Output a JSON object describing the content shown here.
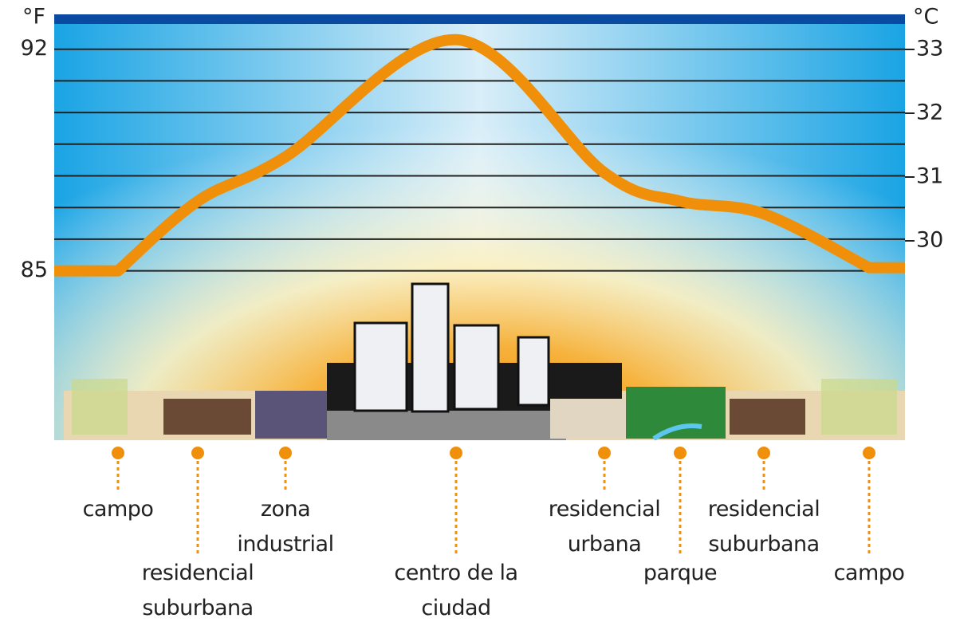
{
  "chart_data": {
    "type": "line",
    "y_label": "°F",
    "y2_label": "°C",
    "categories": [
      "campo",
      "residencial suburbana",
      "zona industrial",
      "centro de la ciudad",
      "residencial urbana",
      "parque",
      "residencial suburbana",
      "campo"
    ],
    "values": [
      85,
      87.2,
      88.6,
      92.3,
      88.1,
      87.2,
      86.8,
      85.1
    ],
    "color": "#f0900a",
    "ylim": [
      79.7,
      93
    ],
    "yticks": [
      85,
      92
    ],
    "y_gridlines": [
      85,
      86,
      87,
      88,
      89,
      90,
      91,
      92
    ],
    "y2lim": [
      26.9,
      33.5
    ],
    "y2ticks": [
      30,
      31,
      32,
      33
    ]
  }
}
